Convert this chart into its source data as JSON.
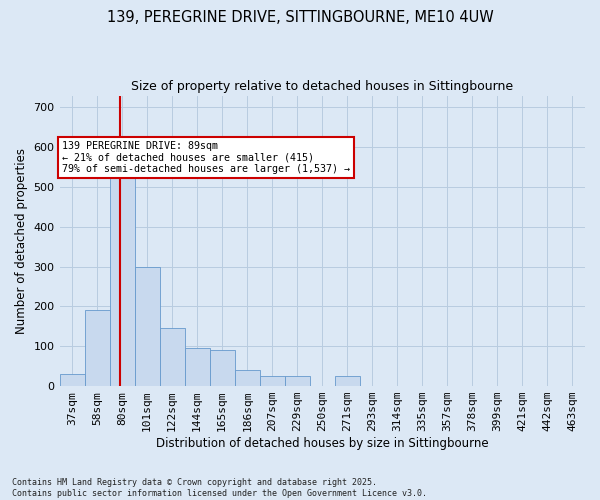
{
  "title_line1": "139, PEREGRINE DRIVE, SITTINGBOURNE, ME10 4UW",
  "title_line2": "Size of property relative to detached houses in Sittingbourne",
  "xlabel": "Distribution of detached houses by size in Sittingbourne",
  "ylabel": "Number of detached properties",
  "bar_color": "#c8d9ee",
  "bar_edge_color": "#6699cc",
  "vline_color": "#cc0000",
  "annotation_text": "139 PEREGRINE DRIVE: 89sqm\n← 21% of detached houses are smaller (415)\n79% of semi-detached houses are larger (1,537) →",
  "annotation_box_color": "#cc0000",
  "background_color": "#dce8f5",
  "fig_background_color": "#dce8f5",
  "categories": [
    "37sqm",
    "58sqm",
    "80sqm",
    "101sqm",
    "122sqm",
    "144sqm",
    "165sqm",
    "186sqm",
    "207sqm",
    "229sqm",
    "250sqm",
    "271sqm",
    "293sqm",
    "314sqm",
    "335sqm",
    "357sqm",
    "378sqm",
    "399sqm",
    "421sqm",
    "442sqm",
    "463sqm"
  ],
  "bar_heights": [
    30,
    190,
    570,
    300,
    145,
    95,
    90,
    40,
    25,
    25,
    0,
    25,
    0,
    0,
    0,
    0,
    0,
    0,
    0,
    0,
    0
  ],
  "ylim": [
    0,
    730
  ],
  "yticks": [
    0,
    100,
    200,
    300,
    400,
    500,
    600,
    700
  ],
  "footnote": "Contains HM Land Registry data © Crown copyright and database right 2025.\nContains public sector information licensed under the Open Government Licence v3.0.",
  "grid_color": "#b8cce0"
}
